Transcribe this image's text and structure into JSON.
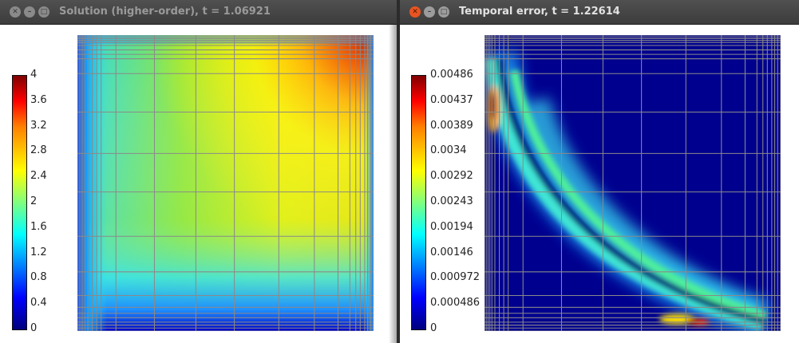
{
  "windows": [
    {
      "title": "Solution (higher-order), t = 1.06921",
      "colorbar": {
        "ticks": [
          "4",
          "3.6",
          "3.2",
          "2.8",
          "2.4",
          "2",
          "1.6",
          "1.2",
          "0.8",
          "0.4",
          "0"
        ],
        "min": 0,
        "max": 4
      }
    },
    {
      "title": "Temporal error, t = 1.22614",
      "colorbar": {
        "ticks": [
          "0.00486",
          "0.00437",
          "0.00389",
          "0.0034",
          "0.00292",
          "0.00243",
          "0.00194",
          "0.00146",
          "0.000972",
          "0.000486",
          "0"
        ],
        "min": 0,
        "max": 0.00486
      }
    }
  ],
  "colors": {
    "mesh": "#8a8a8a",
    "window_bg": "#ffffff",
    "titlebar": "#3c3c3c",
    "close_active": "#e95420"
  },
  "icons": [
    "close-icon",
    "minimize-icon",
    "maximize-icon"
  ]
}
